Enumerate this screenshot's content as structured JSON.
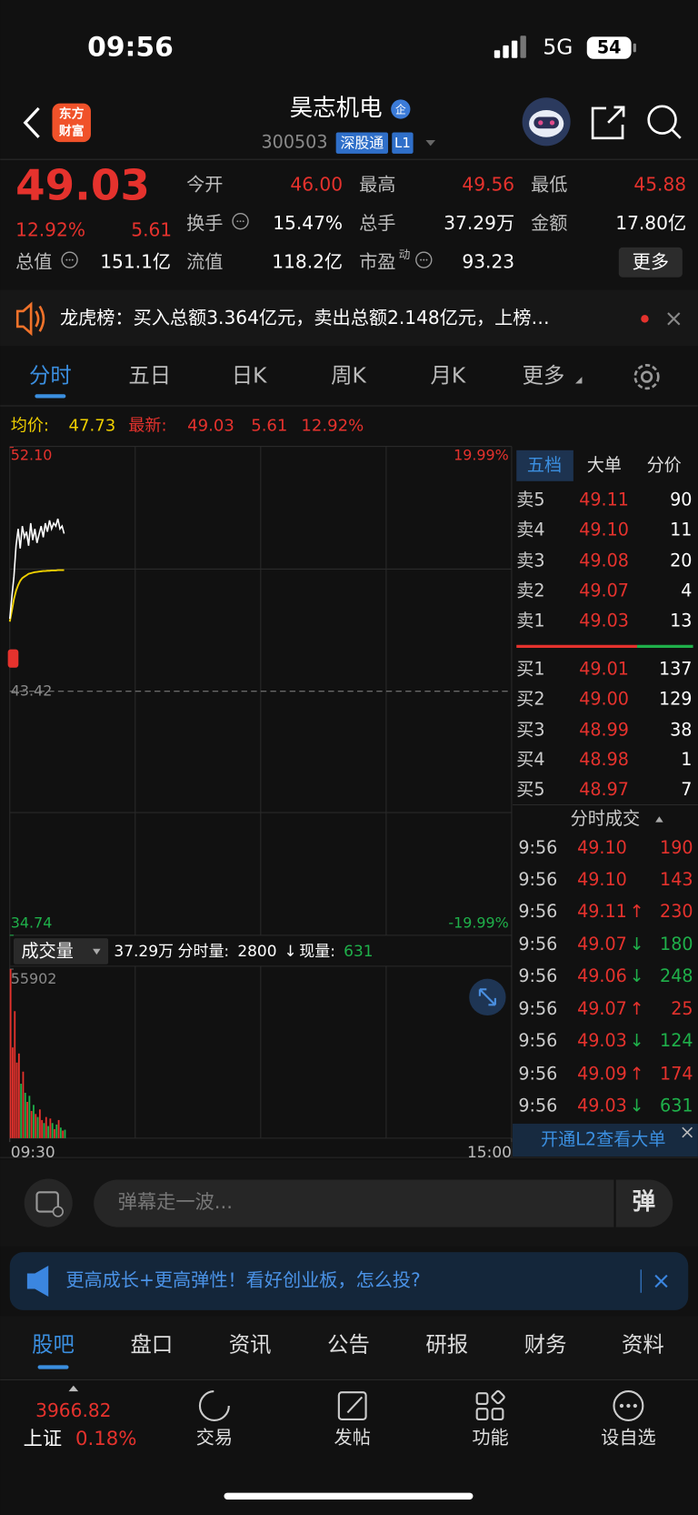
{
  "status_bar": {
    "time": "09:56",
    "network": "5G",
    "battery": "54"
  },
  "header": {
    "logo": [
      "东方",
      "财富"
    ],
    "title": "昊志机电",
    "badge": "企",
    "code": "300503",
    "tag": "深股通",
    "level": "L1"
  },
  "quote": {
    "price": "49.03",
    "change_pct": "12.92%",
    "change": "5.61",
    "more": "更多",
    "fields": [
      {
        "label": "今开",
        "value": "46.00",
        "color": "#e5322d"
      },
      {
        "label": "最高",
        "value": "49.56",
        "color": "#e5322d"
      },
      {
        "label": "最低",
        "value": "45.88",
        "color": "#e5322d"
      },
      {
        "label": "换手",
        "value": "15.47%",
        "color": "#ffffff"
      },
      {
        "label": "总手",
        "value": "37.29万",
        "color": "#ffffff"
      },
      {
        "label": "金额",
        "value": "17.80亿",
        "color": "#ffffff"
      },
      {
        "label": "总值",
        "value": "151.1亿",
        "color": "#ffffff"
      },
      {
        "label": "流值",
        "value": "118.2亿",
        "color": "#ffffff"
      },
      {
        "label": "市盈",
        "sup": "动",
        "value": "93.23",
        "color": "#ffffff"
      }
    ]
  },
  "notice": "龙虎榜：买入总额3.364亿元，卖出总额2.148亿元，上榜…",
  "chart_tabs": [
    "分时",
    "五日",
    "日K",
    "周K",
    "月K",
    "更多"
  ],
  "intraday": {
    "avg_label": "均价:",
    "avg": "47.73",
    "latest_label": "最新:",
    "latest": "49.03",
    "latest_change": "5.61",
    "latest_pct": "12.92%",
    "ylim": [
      34.74,
      52.1
    ],
    "price_ticks": [
      {
        "value": 52.1,
        "label": "52.10"
      },
      {
        "value": 34.74,
        "label": "34.74"
      }
    ],
    "pct_ticks": [
      "19.99%",
      "-19.99%"
    ],
    "reference": {
      "value": 43.42,
      "label": "43.42"
    },
    "xlim": [
      0,
      240
    ],
    "xticks": [
      {
        "value": 0,
        "label": "09:30"
      },
      {
        "value": 240,
        "label": "15:00"
      }
    ],
    "x": [
      0,
      1,
      2,
      3,
      4,
      5,
      6,
      7,
      8,
      9,
      10,
      11,
      12,
      13,
      14,
      15,
      16,
      17,
      18,
      19,
      20,
      21,
      22,
      23,
      24,
      25,
      26
    ],
    "price": [
      46.0,
      46.8,
      47.5,
      48.6,
      49.2,
      48.5,
      49.3,
      48.9,
      49.1,
      48.6,
      49.4,
      48.8,
      49.2,
      48.7,
      49.0,
      49.3,
      48.9,
      49.4,
      49.1,
      49.5,
      49.2,
      49.4,
      49.3,
      49.56,
      49.2,
      49.3,
      49.03
    ],
    "avg_line": [
      45.9,
      46.3,
      46.7,
      47.0,
      47.2,
      47.35,
      47.45,
      47.5,
      47.55,
      47.6,
      47.62,
      47.64,
      47.66,
      47.67,
      47.68,
      47.69,
      47.7,
      47.7,
      47.71,
      47.71,
      47.72,
      47.72,
      47.72,
      47.73,
      47.73,
      47.73,
      47.73
    ],
    "volume_title": "成交量",
    "volume_total": "37.29万",
    "minute_volume_label": "分时量:",
    "minute_volume": "2800",
    "minute_arrow": "↓",
    "current_volume_label": "现量:",
    "current_volume": "631",
    "volume_ylim": [
      0,
      55902
    ],
    "volume_ticks": [
      55902
    ],
    "volume": [
      55902,
      30000,
      42000,
      25000,
      28000,
      18000,
      22000,
      15000,
      12000,
      14000,
      9000,
      11000,
      8000,
      7000,
      9500,
      6000,
      5000,
      7000,
      4000,
      6500,
      5000,
      3000,
      4500,
      6000,
      3500,
      2500,
      2800
    ]
  },
  "order_book": {
    "tabs": [
      "五档",
      "大单",
      "分价"
    ],
    "asks": [
      {
        "label": "卖5",
        "price": "49.11",
        "volume": "90"
      },
      {
        "label": "卖4",
        "price": "49.10",
        "volume": "11"
      },
      {
        "label": "卖3",
        "price": "49.08",
        "volume": "20"
      },
      {
        "label": "卖2",
        "price": "49.07",
        "volume": "4"
      },
      {
        "label": "卖1",
        "price": "49.03",
        "volume": "13"
      }
    ],
    "bids": [
      {
        "label": "买1",
        "price": "49.01",
        "volume": "137"
      },
      {
        "label": "买2",
        "price": "49.00",
        "volume": "129"
      },
      {
        "label": "买3",
        "price": "48.99",
        "volume": "38"
      },
      {
        "label": "买4",
        "price": "48.98",
        "volume": "1"
      },
      {
        "label": "买5",
        "price": "48.97",
        "volume": "7"
      }
    ],
    "trades_title": "分时成交",
    "trades": [
      {
        "time": "9:56",
        "price": "49.10",
        "arrow": "",
        "volume": "190",
        "side": "up"
      },
      {
        "time": "9:56",
        "price": "49.10",
        "arrow": "",
        "volume": "143",
        "side": "up"
      },
      {
        "time": "9:56",
        "price": "49.11",
        "arrow": "↑",
        "volume": "230",
        "side": "up"
      },
      {
        "time": "9:56",
        "price": "49.07",
        "arrow": "↓",
        "volume": "180",
        "side": "down"
      },
      {
        "time": "9:56",
        "price": "49.06",
        "arrow": "↓",
        "volume": "248",
        "side": "down"
      },
      {
        "time": "9:56",
        "price": "49.07",
        "arrow": "↑",
        "volume": "25",
        "side": "up"
      },
      {
        "time": "9:56",
        "price": "49.03",
        "arrow": "↓",
        "volume": "124",
        "side": "down"
      },
      {
        "time": "9:56",
        "price": "49.09",
        "arrow": "↑",
        "volume": "174",
        "side": "up"
      },
      {
        "time": "9:56",
        "price": "49.03",
        "arrow": "↓",
        "volume": "631",
        "side": "down"
      }
    ],
    "l2_banner": "开通L2查看大单"
  },
  "comment_bar": {
    "placeholder": "弹幕走一波...",
    "button": "弹"
  },
  "ad": "更高成长+更高弹性！看好创业板，怎么投?",
  "section_tabs": [
    "股吧",
    "盘口",
    "资讯",
    "公告",
    "研报",
    "财务",
    "资料"
  ],
  "bottom_nav": {
    "index_value": "3966.82",
    "index_name": "上证",
    "index_pct": "0.18%",
    "items": [
      "交易",
      "发帖",
      "功能",
      "设自选"
    ]
  }
}
